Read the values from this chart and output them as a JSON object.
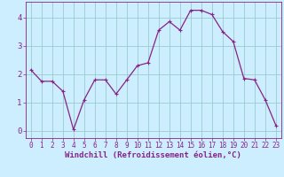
{
  "x": [
    0,
    1,
    2,
    3,
    4,
    5,
    6,
    7,
    8,
    9,
    10,
    11,
    12,
    13,
    14,
    15,
    16,
    17,
    18,
    19,
    20,
    21,
    22,
    23
  ],
  "y": [
    2.15,
    1.75,
    1.75,
    1.4,
    0.05,
    1.1,
    1.8,
    1.8,
    1.3,
    1.8,
    2.3,
    2.4,
    3.55,
    3.85,
    3.55,
    4.25,
    4.25,
    4.1,
    3.5,
    3.15,
    1.85,
    1.8,
    1.1,
    0.2
  ],
  "line_color": "#882288",
  "marker": "+",
  "marker_size": 3,
  "marker_linewidth": 0.8,
  "bg_color": "#cceeff",
  "grid_color": "#99cccc",
  "xlabel": "Windchill (Refroidissement éolien,°C)",
  "xlabel_color": "#882288",
  "xlim": [
    -0.5,
    23.5
  ],
  "ylim": [
    -0.25,
    4.55
  ],
  "yticks": [
    0,
    1,
    2,
    3,
    4
  ],
  "xtick_labels": [
    "0",
    "1",
    "2",
    "3",
    "4",
    "5",
    "6",
    "7",
    "8",
    "9",
    "10",
    "11",
    "12",
    "13",
    "14",
    "15",
    "16",
    "17",
    "18",
    "19",
    "20",
    "21",
    "22",
    "23"
  ],
  "tick_color": "#882288",
  "spine_color": "#882288",
  "label_fontsize": 6.5,
  "tick_fontsize": 5.5,
  "ytick_fontsize": 6.5,
  "linewidth": 0.9
}
